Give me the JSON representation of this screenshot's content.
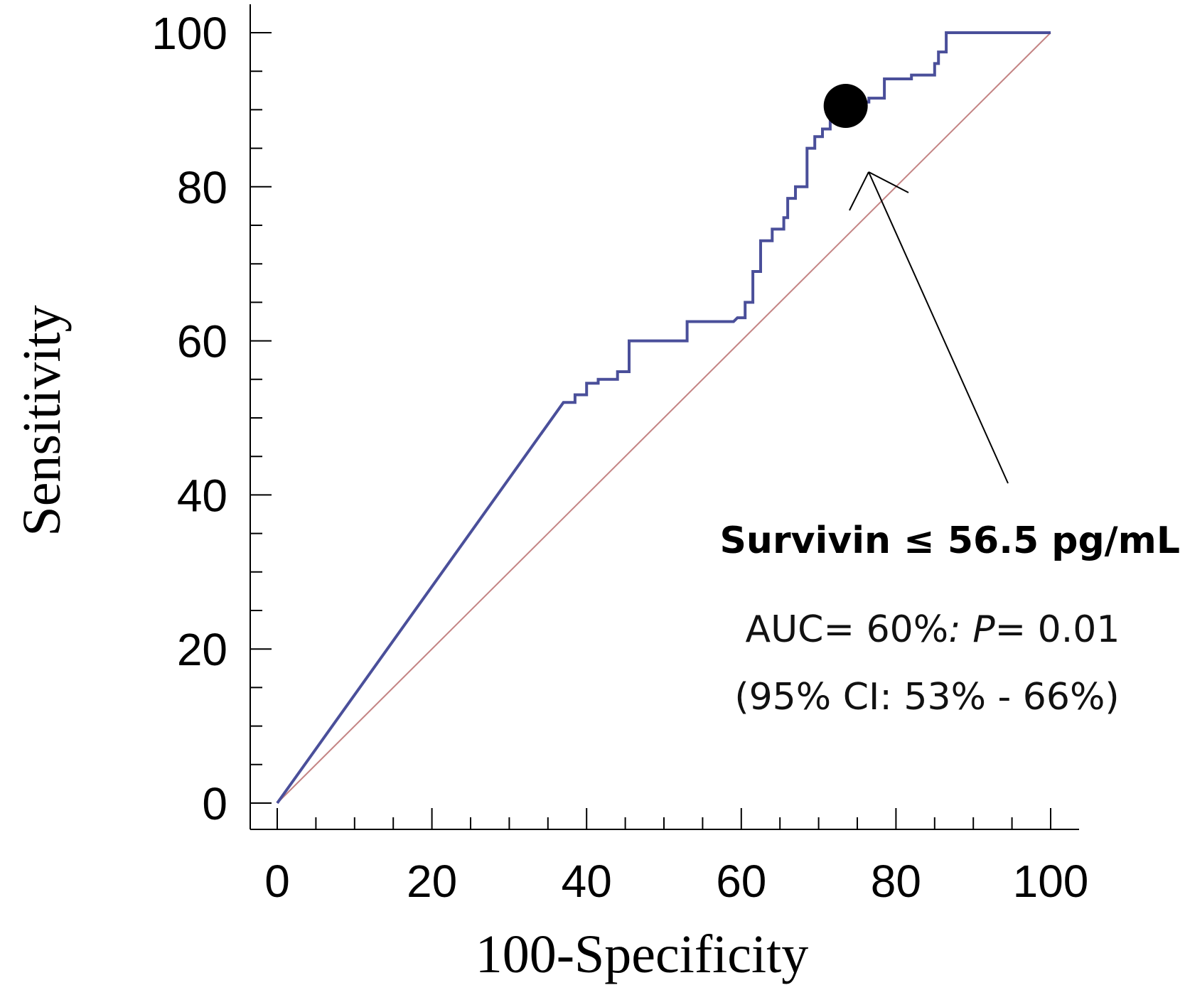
{
  "chart_data": {
    "type": "line",
    "xlabel": "100-Specificity",
    "ylabel": "Sensitivity",
    "xlim": [
      0,
      100
    ],
    "ylim": [
      0,
      100
    ],
    "x_ticks": [
      "0",
      "20",
      "40",
      "60",
      "80",
      "100"
    ],
    "y_ticks": [
      "0",
      "20",
      "40",
      "60",
      "80",
      "100"
    ],
    "minor_tick_step": 5,
    "colors": {
      "roc": "#4a4f9a",
      "reference": "#c48484",
      "marker": "#000000",
      "arrow": "#000000"
    },
    "series": [
      {
        "x": [
          0,
          37,
          38.5,
          38.5,
          40,
          40,
          41.5,
          41.5,
          44,
          44,
          45.5,
          45.5,
          53,
          53,
          59,
          59.5,
          60.5,
          60.5,
          61.5,
          61.5,
          62.5,
          62.5,
          64,
          64,
          65.5,
          65.5,
          66,
          66,
          67,
          67,
          68.5,
          68.5,
          69.5,
          69.5,
          70.5,
          70.5,
          71.5,
          71.5,
          74,
          74,
          75,
          75,
          76.5,
          76.5,
          78.5,
          78.5,
          82,
          82,
          85,
          85,
          85.5,
          85.5,
          86.5,
          86.5,
          100
        ],
        "y": [
          0,
          52,
          52,
          53,
          53,
          54.5,
          54.5,
          55,
          55,
          56,
          56,
          60,
          60,
          62.5,
          62.5,
          63,
          63,
          65,
          65,
          69,
          69,
          73,
          73,
          74.5,
          74.5,
          76,
          76,
          78.5,
          78.5,
          80,
          80,
          85,
          85,
          86.5,
          86.5,
          87.5,
          87.5,
          89.5,
          89.5,
          90.5,
          90.5,
          91,
          91,
          91.5,
          91.5,
          94,
          94,
          94.5,
          94.5,
          96,
          96,
          97.5,
          97.5,
          100,
          100
        ]
      }
    ],
    "reference_line": {
      "x": [
        0,
        100
      ],
      "y": [
        0,
        100
      ]
    },
    "criterion_point": {
      "x": 73.5,
      "y": 90.5
    },
    "annotation": {
      "label": "Survivin ≤ 56.5 pg/mL",
      "auc_prefix": "AUC= 60%",
      "auc_colon": ": ",
      "p_label": "P",
      "p_value": "= 0.01",
      "ci": "(95% CI: 53% - 66%)"
    }
  }
}
